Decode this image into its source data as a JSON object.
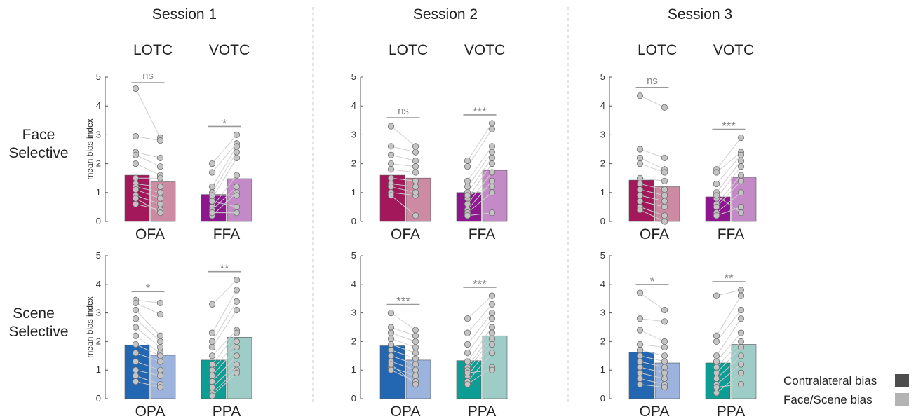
{
  "sessions": [
    "Session 1",
    "Session 2",
    "Session 3"
  ],
  "regions": [
    "LOTC",
    "VOTC"
  ],
  "rows": [
    {
      "label_line1": "Face",
      "label_line2": "Selective"
    },
    {
      "label_line1": "Scene",
      "label_line2": "Selective"
    }
  ],
  "ylabel": "mean bias index",
  "yticks": [
    "0",
    "1",
    "2",
    "3",
    "4",
    "5"
  ],
  "legend": [
    {
      "label": "Contralateral bias",
      "color": "#4d4d4d"
    },
    {
      "label": "Face/Scene bias",
      "color": "#b3b3b3"
    }
  ],
  "chart_data": {
    "type": "bar",
    "ylim": [
      0,
      5
    ],
    "ylabel": "mean bias index",
    "series_names": [
      "Contralateral bias",
      "Face/Scene bias"
    ],
    "panels": [
      {
        "session": "Session 1",
        "row": "Face Selective",
        "groups": [
          {
            "roi": "OFA",
            "colors": [
              "#a3175b",
              "#cd8ba3"
            ],
            "values": [
              1.6,
              1.37
            ],
            "sig": "ns",
            "points": [
              [
                4.6,
                2.9
              ],
              [
                2.95,
                2.8
              ],
              [
                2.4,
                2.2
              ],
              [
                2.3,
                1.9
              ],
              [
                2.0,
                1.6
              ],
              [
                1.5,
                1.5
              ],
              [
                1.3,
                1.2
              ],
              [
                1.2,
                1.0
              ],
              [
                0.9,
                0.6
              ],
              [
                0.6,
                0.4
              ],
              [
                0.8,
                0.3
              ],
              [
                1.1,
                0.8
              ]
            ]
          },
          {
            "roi": "FFA",
            "colors": [
              "#8e168e",
              "#c48ac8"
            ],
            "values": [
              0.93,
              1.48
            ],
            "sig": "*",
            "points": [
              [
                2.0,
                3.0
              ],
              [
                1.7,
                2.7
              ],
              [
                1.2,
                2.6
              ],
              [
                1.0,
                2.4
              ],
              [
                0.8,
                2.2
              ],
              [
                0.5,
                1.6
              ],
              [
                0.4,
                1.2
              ],
              [
                0.2,
                1.0
              ],
              [
                0.7,
                0.5
              ],
              [
                0.3,
                0.3
              ],
              [
                0.9,
                0.9
              ]
            ]
          }
        ]
      },
      {
        "session": "Session 2",
        "row": "Face Selective",
        "groups": [
          {
            "roi": "OFA",
            "colors": [
              "#a3175b",
              "#cd8ba3"
            ],
            "values": [
              1.6,
              1.5
            ],
            "sig": "ns",
            "points": [
              [
                3.3,
                2.6
              ],
              [
                2.6,
                2.4
              ],
              [
                2.3,
                2.1
              ],
              [
                2.0,
                1.9
              ],
              [
                1.8,
                1.7
              ],
              [
                1.5,
                1.4
              ],
              [
                1.3,
                1.2
              ],
              [
                1.0,
                0.9
              ],
              [
                0.9,
                0.2
              ],
              [
                1.2,
                1.0
              ]
            ]
          },
          {
            "roi": "FFA",
            "colors": [
              "#8e168e",
              "#c48ac8"
            ],
            "values": [
              1.0,
              1.77
            ],
            "sig": "***",
            "points": [
              [
                2.1,
                3.4
              ],
              [
                1.9,
                3.2
              ],
              [
                1.4,
                2.6
              ],
              [
                1.2,
                2.4
              ],
              [
                1.0,
                2.2
              ],
              [
                0.8,
                2.0
              ],
              [
                0.6,
                1.7
              ],
              [
                0.4,
                1.4
              ],
              [
                0.3,
                1.0
              ],
              [
                0.2,
                0.3
              ],
              [
                0.9,
                1.2
              ]
            ]
          }
        ]
      },
      {
        "session": "Session 3",
        "row": "Face Selective",
        "groups": [
          {
            "roi": "OFA",
            "colors": [
              "#a3175b",
              "#cd8ba3"
            ],
            "values": [
              1.43,
              1.2
            ],
            "sig": "ns",
            "points": [
              [
                4.35,
                3.95
              ],
              [
                2.5,
                2.2
              ],
              [
                2.2,
                1.8
              ],
              [
                2.0,
                1.7
              ],
              [
                1.5,
                1.4
              ],
              [
                1.3,
                1.1
              ],
              [
                1.1,
                0.9
              ],
              [
                0.9,
                0.7
              ],
              [
                0.7,
                0.5
              ],
              [
                0.5,
                0.2
              ],
              [
                0.4,
                0.0
              ]
            ]
          },
          {
            "roi": "FFA",
            "colors": [
              "#8e168e",
              "#c48ac8"
            ],
            "values": [
              0.85,
              1.53
            ],
            "sig": "***",
            "points": [
              [
                1.8,
                2.9
              ],
              [
                1.7,
                2.4
              ],
              [
                1.3,
                2.3
              ],
              [
                1.0,
                2.1
              ],
              [
                0.8,
                1.9
              ],
              [
                0.6,
                1.6
              ],
              [
                0.5,
                1.4
              ],
              [
                0.3,
                1.0
              ],
              [
                0.2,
                0.5
              ],
              [
                0.9,
                0.3
              ]
            ]
          }
        ]
      },
      {
        "session": "Session 1",
        "row": "Scene Selective",
        "groups": [
          {
            "roi": "OPA",
            "colors": [
              "#2367b3",
              "#9cb3dd"
            ],
            "values": [
              1.88,
              1.52
            ],
            "sig": "*",
            "points": [
              [
                3.45,
                3.35
              ],
              [
                3.35,
                2.95
              ],
              [
                3.1,
                2.2
              ],
              [
                2.8,
                2.0
              ],
              [
                2.5,
                1.8
              ],
              [
                2.2,
                1.6
              ],
              [
                1.9,
                1.5
              ],
              [
                1.6,
                1.3
              ],
              [
                1.3,
                1.0
              ],
              [
                1.0,
                0.8
              ],
              [
                0.8,
                0.5
              ],
              [
                0.6,
                0.4
              ]
            ]
          },
          {
            "roi": "PPA",
            "colors": [
              "#0e9d94",
              "#9dcdc6"
            ],
            "values": [
              1.35,
              2.15
            ],
            "sig": "**",
            "points": [
              [
                3.3,
                4.15
              ],
              [
                2.3,
                3.8
              ],
              [
                2.0,
                3.4
              ],
              [
                1.8,
                3.1
              ],
              [
                1.5,
                2.4
              ],
              [
                1.2,
                2.3
              ],
              [
                1.0,
                2.0
              ],
              [
                0.8,
                1.8
              ],
              [
                0.6,
                1.5
              ],
              [
                0.4,
                1.2
              ],
              [
                0.2,
                1.0
              ],
              [
                0.1,
                0.9
              ]
            ]
          }
        ]
      },
      {
        "session": "Session 2",
        "row": "Scene Selective",
        "groups": [
          {
            "roi": "OPA",
            "colors": [
              "#2367b3",
              "#9cb3dd"
            ],
            "values": [
              1.85,
              1.35
            ],
            "sig": "***",
            "points": [
              [
                3.0,
                2.4
              ],
              [
                2.5,
                2.2
              ],
              [
                2.3,
                2.0
              ],
              [
                2.1,
                1.8
              ],
              [
                1.9,
                1.6
              ],
              [
                1.7,
                1.4
              ],
              [
                1.5,
                1.2
              ],
              [
                1.3,
                1.0
              ],
              [
                1.1,
                0.8
              ],
              [
                1.0,
                0.6
              ],
              [
                1.2,
                0.5
              ]
            ]
          },
          {
            "roi": "PPA",
            "colors": [
              "#0e9d94",
              "#9dcdc6"
            ],
            "values": [
              1.33,
              2.2
            ],
            "sig": "***",
            "points": [
              [
                2.8,
                3.6
              ],
              [
                2.3,
                3.3
              ],
              [
                1.9,
                3.0
              ],
              [
                1.6,
                2.8
              ],
              [
                1.3,
                2.5
              ],
              [
                1.1,
                2.3
              ],
              [
                1.0,
                2.1
              ],
              [
                0.8,
                1.9
              ],
              [
                0.6,
                1.6
              ],
              [
                0.5,
                1.1
              ],
              [
                0.9,
                1.0
              ]
            ]
          }
        ]
      },
      {
        "session": "Session 3",
        "row": "Scene Selective",
        "groups": [
          {
            "roi": "OPA",
            "colors": [
              "#2367b3",
              "#9cb3dd"
            ],
            "values": [
              1.63,
              1.25
            ],
            "sig": "*",
            "points": [
              [
                3.7,
                3.1
              ],
              [
                2.8,
                2.7
              ],
              [
                2.4,
                2.0
              ],
              [
                1.9,
                1.8
              ],
              [
                1.7,
                1.5
              ],
              [
                1.5,
                1.3
              ],
              [
                1.3,
                1.1
              ],
              [
                1.1,
                0.9
              ],
              [
                0.9,
                0.7
              ],
              [
                0.7,
                0.5
              ],
              [
                0.5,
                0.4
              ]
            ]
          },
          {
            "roi": "PPA",
            "colors": [
              "#0e9d94",
              "#9dcdc6"
            ],
            "values": [
              1.25,
              1.9
            ],
            "sig": "**",
            "points": [
              [
                3.6,
                3.8
              ],
              [
                2.2,
                3.6
              ],
              [
                2.0,
                3.1
              ],
              [
                1.5,
                2.8
              ],
              [
                1.3,
                2.3
              ],
              [
                1.1,
                2.0
              ],
              [
                0.9,
                1.8
              ],
              [
                0.7,
                1.5
              ],
              [
                0.5,
                1.2
              ],
              [
                0.4,
                0.5
              ],
              [
                0.2,
                0.9
              ]
            ]
          }
        ]
      }
    ]
  }
}
